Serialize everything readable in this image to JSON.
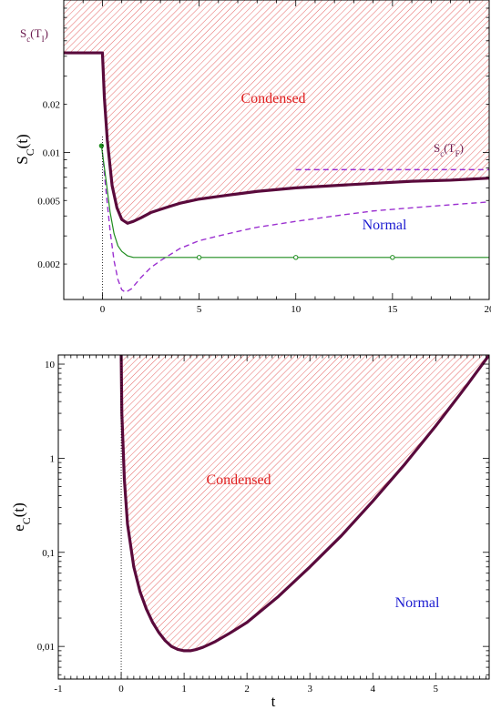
{
  "chart_data": [
    {
      "type": "line",
      "ylabel": "S_C(t)",
      "xlim": [
        -2,
        20
      ],
      "ylim": [
        0.0012,
        0.09
      ],
      "yscale": "log",
      "x_ticks": [
        "0",
        "5",
        "10",
        "15",
        "20"
      ],
      "y_ticks": [
        "0.002",
        "0.005",
        "0.01",
        "0.02"
      ],
      "region_labels": [
        {
          "text": "Condensed",
          "color": "#e02020"
        },
        {
          "text": "Normal",
          "color": "#1a1ad0"
        }
      ],
      "annotations": [
        "S_c(T_I)",
        "S_c(T_F)"
      ],
      "series": [
        {
          "style": "thick-solid",
          "color": "#5a0a3c",
          "x": [
            -2,
            -0.05,
            0,
            0.1,
            0.25,
            0.5,
            0.75,
            1.0,
            1.3,
            1.6,
            2.0,
            2.5,
            3.0,
            3.5,
            4,
            5,
            6,
            7,
            8,
            10,
            12,
            14,
            16,
            18,
            20
          ],
          "y": [
            0.042,
            0.042,
            0.042,
            0.022,
            0.012,
            0.0062,
            0.0045,
            0.0038,
            0.0036,
            0.0037,
            0.0039,
            0.0042,
            0.0044,
            0.0046,
            0.0048,
            0.0051,
            0.0053,
            0.0055,
            0.0057,
            0.006,
            0.0062,
            0.0064,
            0.0066,
            0.0067,
            0.0069
          ]
        },
        {
          "style": "dashed",
          "color": "#9b30d0",
          "x": [
            0,
            0.2,
            0.4,
            0.6,
            0.8,
            1.0,
            1.2,
            1.5,
            2.0,
            2.5,
            3.0,
            4,
            5,
            6,
            7,
            8,
            10,
            12,
            14,
            16,
            18,
            20
          ],
          "y": [
            0.01,
            0.0055,
            0.0032,
            0.0021,
            0.0016,
            0.00138,
            0.00133,
            0.0014,
            0.00165,
            0.0019,
            0.0021,
            0.0025,
            0.0028,
            0.003,
            0.0032,
            0.0034,
            0.0037,
            0.004,
            0.0043,
            0.0045,
            0.0047,
            0.0049
          ]
        },
        {
          "style": "dashed",
          "color": "#9b30d0",
          "x": [
            10,
            20
          ],
          "y": [
            0.0078,
            0.0078
          ]
        },
        {
          "style": "thin-solid",
          "color": "#1e8c1e",
          "x": [
            -0.05,
            0.2,
            0.4,
            0.6,
            0.8,
            1.0,
            1.3,
            1.6,
            2,
            3,
            5,
            10,
            15,
            20
          ],
          "y": [
            0.011,
            0.0065,
            0.0042,
            0.0031,
            0.0026,
            0.0024,
            0.00225,
            0.0022,
            0.0022,
            0.0022,
            0.0022,
            0.0022,
            0.0022,
            0.0022
          ]
        },
        {
          "style": "markers",
          "color": "#1e8c1e",
          "x": [
            -0.05,
            5,
            10,
            15
          ],
          "y": [
            0.011,
            0.0022,
            0.0022,
            0.0022
          ]
        }
      ]
    },
    {
      "type": "line",
      "xlabel": "t",
      "ylabel": "e_C(t)",
      "xlim": [
        -1,
        5.85
      ],
      "ylim": [
        0.0045,
        12.5
      ],
      "yscale": "log",
      "x_ticks": [
        "-1",
        "0",
        "1",
        "2",
        "3",
        "4",
        "5"
      ],
      "y_ticks": [
        "0,01",
        "0,1",
        "1",
        "10"
      ],
      "region_labels": [
        {
          "text": "Condensed",
          "color": "#e02020"
        },
        {
          "text": "Normal",
          "color": "#1a1ad0"
        }
      ],
      "series": [
        {
          "style": "thick-solid",
          "color": "#5a0a3c",
          "x": [
            0,
            0.01,
            0.05,
            0.1,
            0.2,
            0.3,
            0.4,
            0.5,
            0.6,
            0.7,
            0.8,
            0.9,
            1.0,
            1.1,
            1.2,
            1.3,
            1.4,
            1.5,
            1.7,
            2.0,
            2.5,
            3.0,
            3.5,
            4.0,
            4.5,
            5.0,
            5.5,
            5.85
          ],
          "y": [
            12.5,
            3.0,
            0.6,
            0.2,
            0.07,
            0.038,
            0.025,
            0.018,
            0.014,
            0.0115,
            0.01,
            0.0093,
            0.009,
            0.009,
            0.0093,
            0.0098,
            0.0105,
            0.0113,
            0.0135,
            0.018,
            0.034,
            0.07,
            0.15,
            0.35,
            0.85,
            2.2,
            6.0,
            12.5
          ]
        }
      ]
    }
  ]
}
